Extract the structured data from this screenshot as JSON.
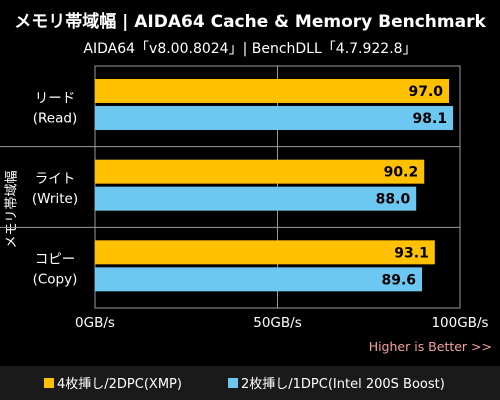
{
  "chart_data": {
    "type": "bar",
    "orientation": "horizontal",
    "title": "メモリ帯域幅 | AIDA64 Cache & Memory Benchmark",
    "subtitle": "AIDA64「v8.00.8024」| BenchDLL「4.7.922.8」",
    "ylabel": "メモリ帯域幅",
    "note": "Higher is Better >>",
    "categories": [
      [
        "リード",
        "(Read)"
      ],
      [
        "ライト",
        "(Write)"
      ],
      [
        "コピー",
        "(Copy)"
      ]
    ],
    "series": [
      {
        "name": "4枚挿し/2DPC(XMP)",
        "color": "#ffc000",
        "values": [
          97.0,
          90.2,
          93.1
        ]
      },
      {
        "name": "2枚挿し/1DPC(Intel 200S Boost)",
        "color": "#6cc8f0",
        "values": [
          98.1,
          88.0,
          89.6
        ]
      }
    ],
    "xlim": [
      0,
      100
    ],
    "xticks": [
      "0GB/s",
      "50GB/s",
      "100GB/s"
    ],
    "grid": true,
    "legend_position": "bottom"
  }
}
